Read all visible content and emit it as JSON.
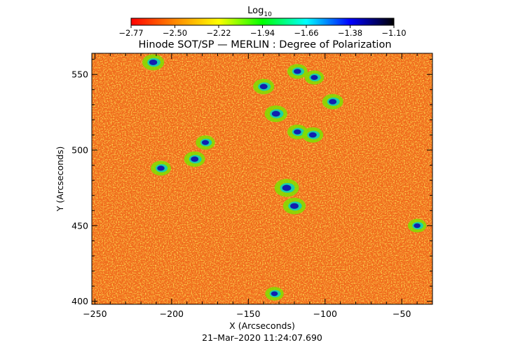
{
  "chart_data": {
    "type": "heatmap",
    "title": "Hinode SOT/SP — MERLIN : Degree of Polarization",
    "xlabel": "X (Arcseconds)",
    "ylabel": "Y (Arcseconds)",
    "xlim": [
      -252,
      -30
    ],
    "ylim": [
      398,
      564
    ],
    "xticks": [
      -250,
      -200,
      -150,
      -100,
      -50
    ],
    "yticks": [
      400,
      450,
      500,
      550
    ],
    "xtick_labels": [
      "−250",
      "−200",
      "−150",
      "−100",
      "−50"
    ],
    "ytick_labels": [
      "400",
      "450",
      "500",
      "550"
    ],
    "colorbar": {
      "title_base": "Log",
      "title_sub": "10",
      "range": [
        -2.77,
        -1.1
      ],
      "tick_labels": [
        "−2.77",
        "−2.50",
        "−2.22",
        "−1.94",
        "−1.66",
        "−1.38",
        "−1.10"
      ],
      "colors": [
        "#ff0000",
        "#ff8800",
        "#ffff00",
        "#00ff00",
        "#00ffff",
        "#0000ff",
        "#000000"
      ]
    },
    "background_color": "#f06a1a",
    "features": [
      {
        "x": -140,
        "y": 542,
        "intensity": 0.75
      },
      {
        "x": -132,
        "y": 524,
        "intensity": 0.85
      },
      {
        "x": -118,
        "y": 512,
        "intensity": 0.7
      },
      {
        "x": -108,
        "y": 510,
        "intensity": 0.75
      },
      {
        "x": -125,
        "y": 475,
        "intensity": 0.95
      },
      {
        "x": -120,
        "y": 463,
        "intensity": 0.85
      },
      {
        "x": -95,
        "y": 532,
        "intensity": 0.75
      },
      {
        "x": -118,
        "y": 552,
        "intensity": 0.7
      },
      {
        "x": -107,
        "y": 548,
        "intensity": 0.65
      },
      {
        "x": -212,
        "y": 558,
        "intensity": 0.8
      },
      {
        "x": -185,
        "y": 494,
        "intensity": 0.75
      },
      {
        "x": -207,
        "y": 488,
        "intensity": 0.7
      },
      {
        "x": -178,
        "y": 505,
        "intensity": 0.65
      },
      {
        "x": -133,
        "y": 405,
        "intensity": 0.6
      },
      {
        "x": -40,
        "y": 450,
        "intensity": 0.6
      }
    ],
    "timestamp": "21–Mar–2020 11:24:07.690"
  }
}
